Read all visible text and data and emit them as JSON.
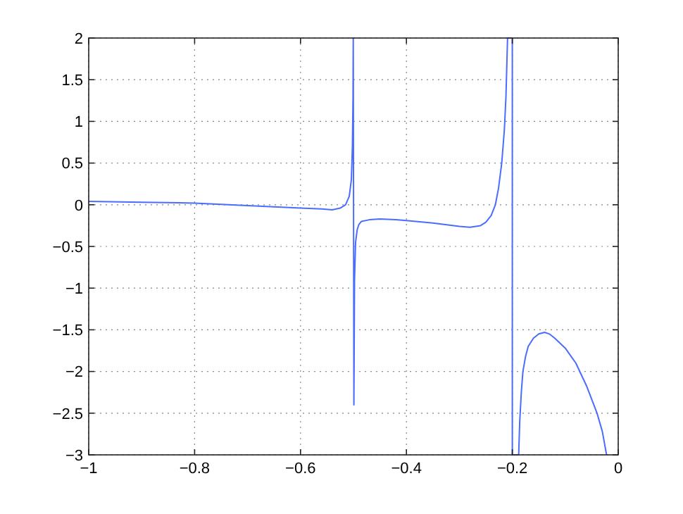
{
  "chart_data": {
    "type": "line",
    "xlim": [
      -1,
      0
    ],
    "ylim": [
      -3,
      2
    ],
    "xticks": [
      {
        "value": -1,
        "label": "−1"
      },
      {
        "value": -0.8,
        "label": "−0.8"
      },
      {
        "value": -0.6,
        "label": "−0.6"
      },
      {
        "value": -0.4,
        "label": "−0.4"
      },
      {
        "value": -0.2,
        "label": "−0.2"
      },
      0
    ],
    "yticks": [
      {
        "value": -3,
        "label": "−3"
      },
      {
        "value": -2.5,
        "label": "−2.5"
      },
      {
        "value": -2,
        "label": "−2"
      },
      {
        "value": -1.5,
        "label": "−1.5"
      },
      {
        "value": -1,
        "label": "−1"
      },
      {
        "value": -0.5,
        "label": "−0.5"
      },
      0,
      0.5,
      1,
      1.5,
      2
    ],
    "grid": true,
    "line_style": "solid",
    "marker": "none",
    "series": [
      {
        "color": "#4a6cff",
        "x": [
          -1,
          -0.9,
          -0.8,
          -0.7,
          -0.6,
          -0.56,
          -0.54,
          -0.525,
          -0.515,
          -0.508,
          -0.504,
          -0.502,
          -0.5008,
          -0.5004,
          -0.4992,
          -0.498,
          -0.496,
          -0.493,
          -0.49,
          -0.485,
          -0.47,
          -0.45,
          -0.42,
          -0.4,
          -0.35,
          -0.3,
          -0.28,
          -0.26,
          -0.25,
          -0.24,
          -0.232,
          -0.226,
          -0.22,
          -0.215,
          -0.212,
          -0.209,
          -0.2,
          -0.2,
          -0.188,
          -0.186,
          -0.183,
          -0.18,
          -0.175,
          -0.17,
          -0.16,
          -0.15,
          -0.139,
          -0.13,
          -0.12,
          -0.1,
          -0.08,
          -0.06,
          -0.04,
          -0.03,
          -0.022
        ],
        "values": [
          0.04,
          0.03,
          0.02,
          -0.01,
          -0.04,
          -0.05,
          -0.06,
          -0.04,
          0.0,
          0.1,
          0.3,
          0.7,
          1.3,
          2,
          -2.4,
          -0.9,
          -0.45,
          -0.3,
          -0.24,
          -0.2,
          -0.18,
          -0.17,
          -0.18,
          -0.19,
          -0.22,
          -0.26,
          -0.27,
          -0.25,
          -0.21,
          -0.13,
          0.0,
          0.2,
          0.5,
          0.9,
          1.3,
          2,
          2,
          -3,
          -3,
          -2.6,
          -2.25,
          -2.0,
          -1.82,
          -1.7,
          -1.6,
          -1.55,
          -1.53,
          -1.55,
          -1.6,
          -1.72,
          -1.9,
          -2.17,
          -2.5,
          -2.72,
          -3
        ]
      }
    ]
  }
}
